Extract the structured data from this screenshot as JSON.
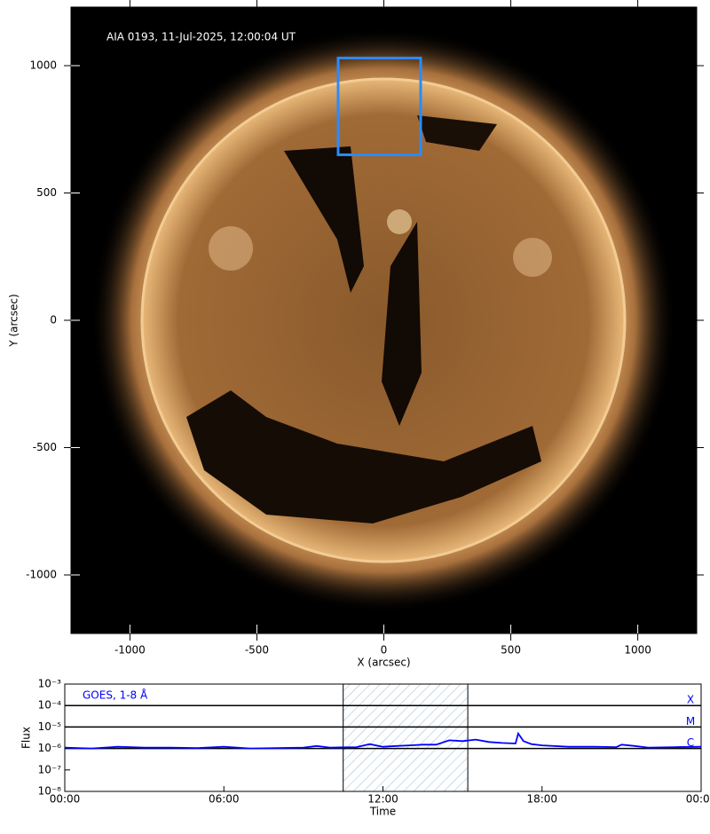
{
  "chart_data": [
    {
      "type": "image",
      "title": "AIA 0193, 11-Jul-2025, 12:00:04 UT",
      "xlabel": "X (arcsec)",
      "ylabel": "Y (arcsec)",
      "xlim": [
        -1232,
        1232
      ],
      "ylim": [
        -1230,
        1230
      ],
      "xticks": [
        -1000,
        -500,
        0,
        500,
        1000
      ],
      "yticks": [
        -1000,
        -500,
        0,
        500,
        1000
      ],
      "box": {
        "x": [
          -180,
          145
        ],
        "y": [
          650,
          1030
        ],
        "color": "#2a8bff"
      }
    },
    {
      "type": "line",
      "title": "GOES, 1-8 Å",
      "xlabel": "Time",
      "ylabel": "Flux",
      "log_y": true,
      "xlim": [
        0,
        24
      ],
      "ylim": [
        1e-08,
        0.001
      ],
      "xticks": [
        {
          "value": 0,
          "label": "00:00"
        },
        {
          "value": 6,
          "label": "06:00"
        },
        {
          "value": 12,
          "label": "12:00"
        },
        {
          "value": 18,
          "label": "18:00"
        },
        {
          "value": 24,
          "label": "00:00"
        }
      ],
      "yticks": [
        {
          "value": 1e-08,
          "label": "10⁻⁸"
        },
        {
          "value": 1e-07,
          "label": "10⁻⁷"
        },
        {
          "value": 1e-06,
          "label": "10⁻⁶"
        },
        {
          "value": 1e-05,
          "label": "10⁻⁵"
        },
        {
          "value": 0.0001,
          "label": "10⁻⁴"
        },
        {
          "value": 0.001,
          "label": "10⁻³"
        }
      ],
      "levels": [
        {
          "value": 0.0001,
          "label": "X"
        },
        {
          "value": 1e-05,
          "label": "M"
        },
        {
          "value": 1e-06,
          "label": "C"
        }
      ],
      "shade": [
        10.5,
        15.2
      ],
      "series": [
        {
          "color": "#0000ff",
          "x": [
            0,
            1,
            2,
            2.5,
            3,
            4,
            5,
            6,
            7,
            8,
            9,
            9.5,
            10,
            11,
            11.5,
            12,
            12.5,
            13,
            13.5,
            14,
            14.5,
            15,
            15.5,
            16,
            16.5,
            17,
            17.1,
            17.3,
            17.6,
            18,
            19,
            20,
            20.8,
            21,
            21.5,
            22,
            23,
            24
          ],
          "values": [
            1.1e-06,
            1e-06,
            1.2e-06,
            1.15e-06,
            1.1e-06,
            1.1e-06,
            1.05e-06,
            1.2e-06,
            1e-06,
            1.05e-06,
            1.1e-06,
            1.3e-06,
            1.1e-06,
            1.15e-06,
            1.6e-06,
            1.2e-06,
            1.3e-06,
            1.4e-06,
            1.5e-06,
            1.5e-06,
            2.4e-06,
            2.2e-06,
            2.6e-06,
            2e-06,
            1.8e-06,
            1.7e-06,
            5e-06,
            2.2e-06,
            1.6e-06,
            1.4e-06,
            1.2e-06,
            1.2e-06,
            1.15e-06,
            1.5e-06,
            1.3e-06,
            1.1e-06,
            1.15e-06,
            1.2e-06
          ]
        }
      ]
    }
  ]
}
